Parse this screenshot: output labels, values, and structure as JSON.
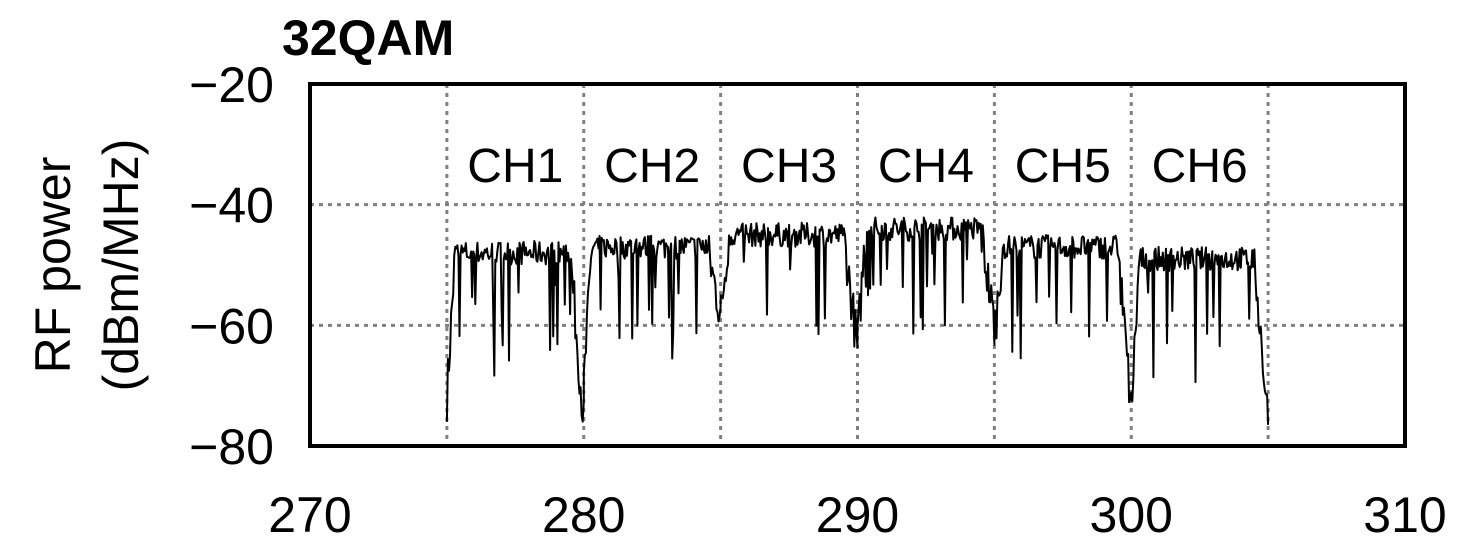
{
  "chart_data": {
    "type": "line",
    "title": "32QAM",
    "xlabel": "",
    "ylabel_line1": "RF power",
    "ylabel_line2": "(dBm/MHz)",
    "xlim": [
      270,
      310
    ],
    "ylim": [
      -80,
      -20
    ],
    "xticks": [
      270,
      280,
      290,
      300,
      310
    ],
    "yticks": [
      -20,
      -40,
      -60,
      -80
    ],
    "xtick_labels": [
      "270",
      "280",
      "290",
      "300",
      "310"
    ],
    "ytick_labels": [
      "−20",
      "−40",
      "−60",
      "−80"
    ],
    "grid": true,
    "vertical_gridlines": [
      275,
      280,
      285,
      290,
      295,
      300,
      305
    ],
    "horizontal_gridlines": [
      -40,
      -60
    ],
    "line_color": "#000000",
    "channels": [
      {
        "name": "CH1",
        "start": 275,
        "end": 280,
        "level": -48,
        "left_skirt": -72,
        "right_skirt": -76
      },
      {
        "name": "CH2",
        "start": 280,
        "end": 285,
        "level": -47,
        "left_skirt": -70,
        "right_skirt": -58
      },
      {
        "name": "CH3",
        "start": 285,
        "end": 290,
        "level": -45,
        "left_skirt": -58,
        "right_skirt": -64
      },
      {
        "name": "CH4",
        "start": 290,
        "end": 295,
        "level": -44,
        "left_skirt": -63,
        "right_skirt": -60
      },
      {
        "name": "CH5",
        "start": 295,
        "end": 300,
        "level": -47,
        "left_skirt": -62,
        "right_skirt": -74
      },
      {
        "name": "CH6",
        "start": 300,
        "end": 305,
        "level": -49,
        "left_skirt": -74,
        "right_skirt": -76
      }
    ]
  }
}
